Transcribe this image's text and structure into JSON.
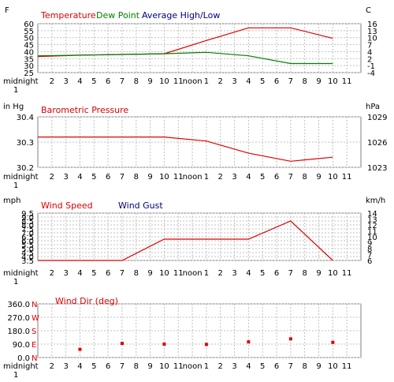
{
  "x_ticks": [
    "midnight",
    "2",
    "3",
    "4",
    "5",
    "6",
    "7",
    "8",
    "9",
    "10",
    "11",
    "noon",
    "1",
    "2",
    "3",
    "4",
    "5",
    "6",
    "7",
    "8",
    "9",
    "10",
    "11"
  ],
  "x_tick_sub": "1",
  "chart_data": [
    {
      "type": "line",
      "unit_left": "F",
      "unit_right": "C",
      "legend": [
        "Temperature",
        "Dew Point",
        "Average High/Low"
      ],
      "colors": {
        "Temperature": "#dd0000",
        "Dew Point": "#008000",
        "Average High/Low": "#000080"
      },
      "yticks_left": [
        "60",
        "55",
        "50",
        "45",
        "40",
        "35",
        "30",
        "25"
      ],
      "yticks_right": [
        "16",
        "13",
        "10",
        "7",
        "4",
        "2",
        "-1",
        "-4"
      ],
      "ylim": [
        25,
        60
      ],
      "grid": true,
      "series": [
        {
          "name": "Temperature",
          "x": [
            0,
            3,
            6,
            9,
            12,
            15,
            18,
            21
          ],
          "y": [
            36.5,
            37.5,
            38,
            38.5,
            48,
            57,
            57,
            49.5
          ]
        },
        {
          "name": "Dew Point",
          "x": [
            0,
            3,
            6,
            9,
            12,
            15,
            18,
            21
          ],
          "y": [
            37,
            37.5,
            38,
            38.5,
            39.5,
            37,
            31.5,
            31.5
          ]
        }
      ]
    },
    {
      "type": "line",
      "unit_left": "in Hg",
      "unit_right": "hPa",
      "legend": [
        "Barometric Pressure"
      ],
      "colors": {
        "Barometric Pressure": "#dd0000"
      },
      "yticks_left": [
        "30.4",
        "30.3",
        "30.2"
      ],
      "yticks_right": [
        "1029",
        "1026",
        "1023"
      ],
      "ylim": [
        30.2,
        30.45
      ],
      "grid": true,
      "series": [
        {
          "name": "Barometric Pressure",
          "x": [
            0,
            3,
            6,
            9,
            12,
            15,
            18,
            21
          ],
          "y": [
            30.35,
            30.35,
            30.35,
            30.35,
            30.33,
            30.27,
            30.23,
            30.25
          ]
        }
      ]
    },
    {
      "type": "line",
      "unit_left": "mph",
      "unit_right": "km/h",
      "legend": [
        "Wind Speed",
        "Wind Gust"
      ],
      "colors": {
        "Wind Speed": "#dd0000",
        "Wind Gust": "#000080"
      },
      "yticks_left": [
        "9.5",
        "9.0",
        "8.5",
        "8.0",
        "7.5",
        "7.0",
        "6.5",
        "6.0",
        "5.5",
        "5.0",
        "4.5",
        "4.0",
        "3.5"
      ],
      "yticks_right": [
        "14",
        "13",
        "12",
        "11",
        "10",
        "9",
        "8",
        "7",
        "6"
      ],
      "ylim": [
        3.5,
        9.5
      ],
      "grid": true,
      "series": [
        {
          "name": "Wind Speed",
          "x": [
            0,
            3,
            6,
            9,
            12,
            15,
            18,
            21
          ],
          "y": [
            3.5,
            3.5,
            3.5,
            6.2,
            6.2,
            6.2,
            8.5,
            3.5
          ]
        }
      ]
    },
    {
      "type": "scatter",
      "unit_left": "",
      "legend": [
        "Wind Dir (deg)"
      ],
      "colors": {
        "Wind Dir (deg)": "#dd0000"
      },
      "yticks_left": [
        "360.0",
        "270.0",
        "180.0",
        "90.0",
        "0.0"
      ],
      "compass_labels": [
        "N",
        "W",
        "S",
        "E",
        "N"
      ],
      "ylim": [
        0,
        360
      ],
      "grid": true,
      "series": [
        {
          "name": "Wind Dir (deg)",
          "x": [
            3,
            6,
            9,
            12,
            15,
            18,
            21
          ],
          "y": [
            55,
            95,
            90,
            88,
            105,
            125,
            102
          ]
        }
      ]
    }
  ]
}
